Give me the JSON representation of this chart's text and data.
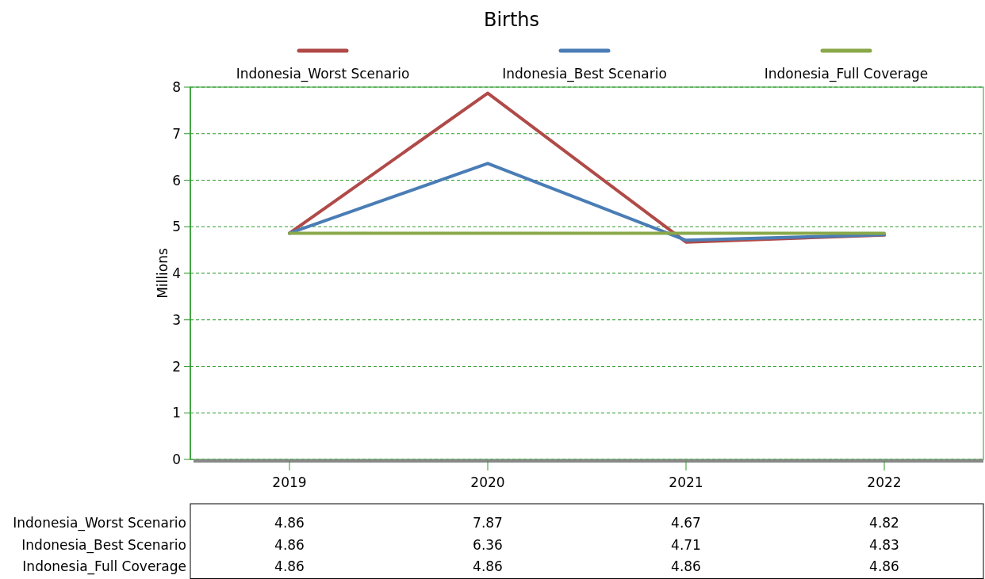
{
  "chart_data": {
    "type": "line",
    "title": "Births",
    "ylabel": "Millions",
    "categories": [
      "2019",
      "2020",
      "2021",
      "2022"
    ],
    "series": [
      {
        "name": "Indonesia_Worst Scenario",
        "color": "#b04a48",
        "values": [
          4.86,
          7.87,
          4.67,
          4.82
        ]
      },
      {
        "name": "Indonesia_Best Scenario",
        "color": "#4a7db5",
        "values": [
          4.86,
          6.36,
          4.71,
          4.83
        ]
      },
      {
        "name": "Indonesia_Full Coverage",
        "color": "#8aa84a",
        "values": [
          4.86,
          4.86,
          4.86,
          4.86
        ]
      }
    ],
    "ylim": [
      0,
      8
    ],
    "yticks": [
      0,
      1,
      2,
      3,
      4,
      5,
      6,
      7,
      8
    ],
    "grid": "y",
    "legend": "top",
    "data_labels": true,
    "line_style": "solid",
    "marker": "none"
  }
}
